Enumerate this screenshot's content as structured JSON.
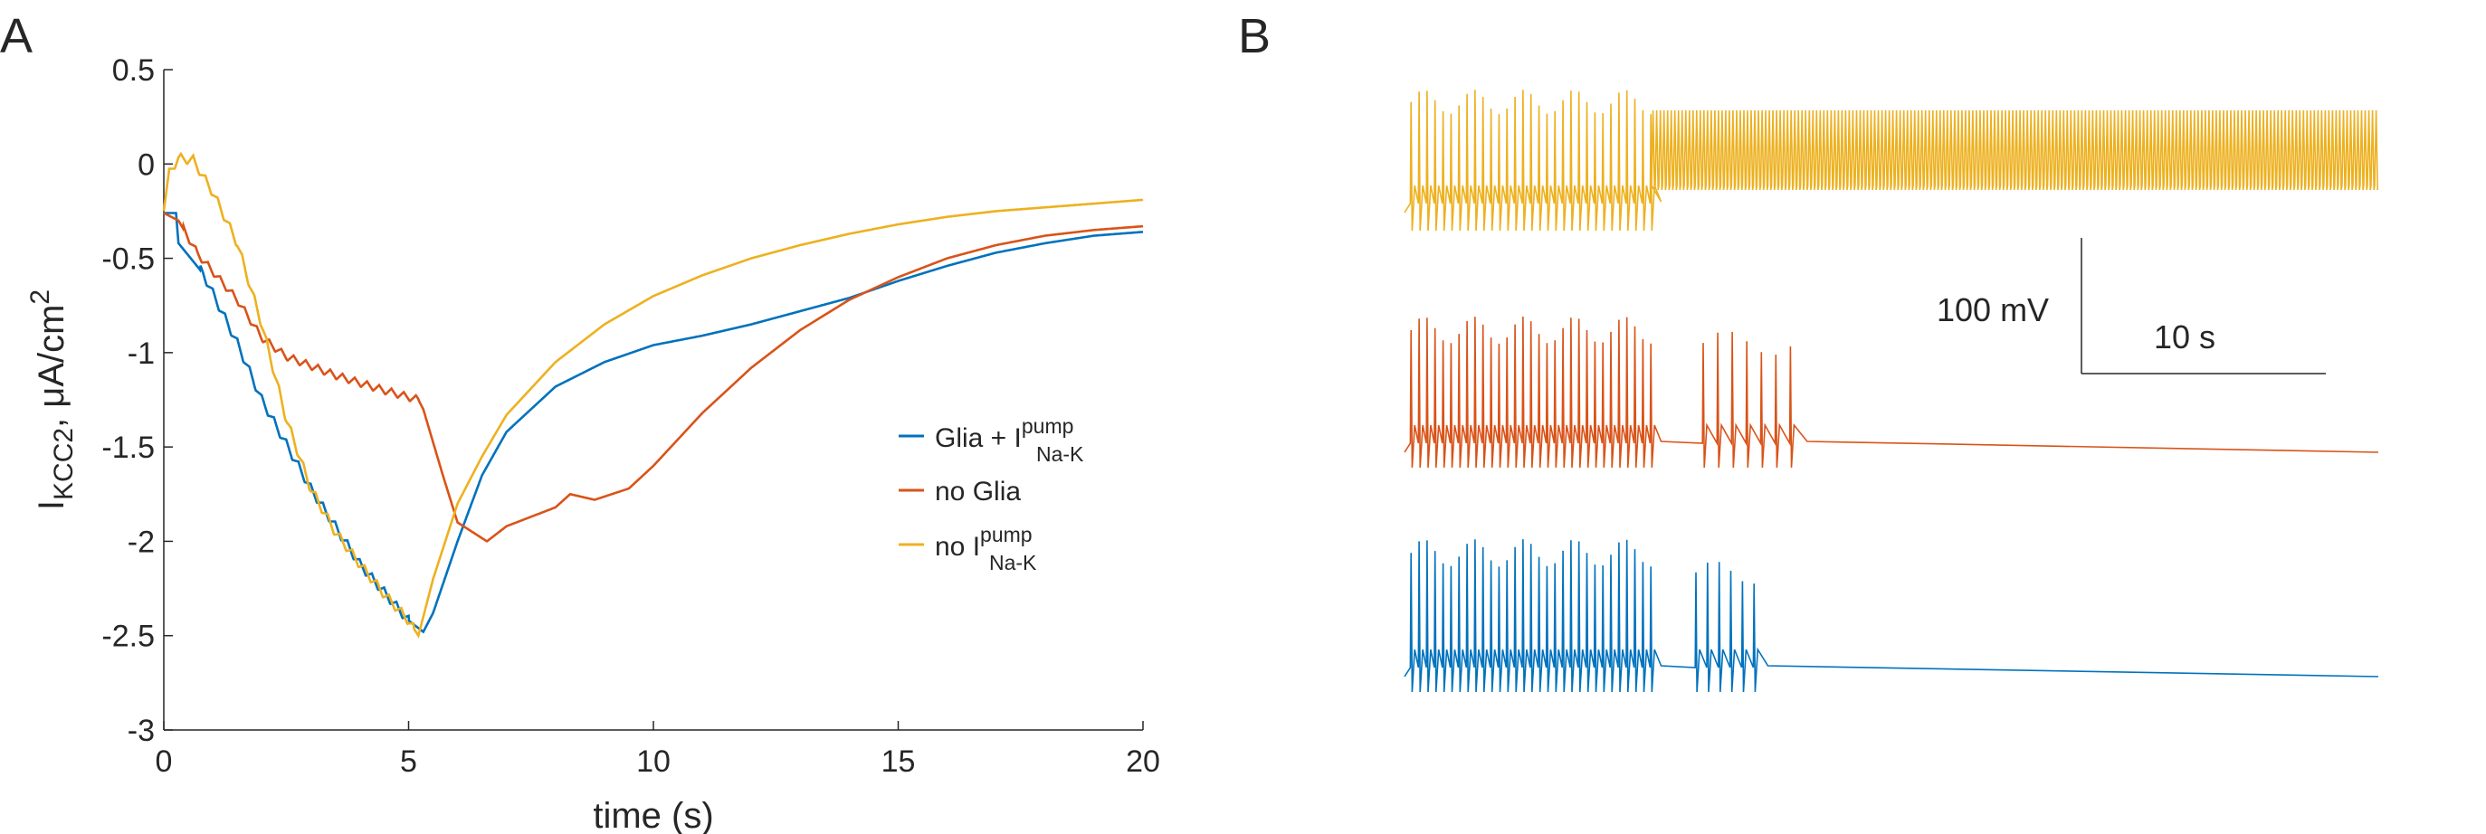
{
  "panel_a": {
    "letter": "A"
  },
  "panel_b": {
    "letter": "B",
    "scale_v_label": "100 mV",
    "scale_t_label": "10 s"
  },
  "colors": {
    "blue": "#0072BD",
    "red": "#D95319",
    "yellow": "#EDB120",
    "axis": "#262626"
  },
  "chart_data": [
    {
      "type": "line",
      "xlabel": "time (s)",
      "ylabel": {
        "base": "I",
        "sub": "KCC2",
        "rest": ", μA/cm",
        "sup": "2"
      },
      "xlim": [
        0,
        20
      ],
      "ylim": [
        -3,
        0.5
      ],
      "xticks": [
        0,
        5,
        10,
        15,
        20
      ],
      "yticks": [
        0.5,
        0,
        -0.5,
        -1,
        -1.5,
        -2,
        -2.5,
        -3
      ],
      "grid": false,
      "legend_position": "right",
      "series": [
        {
          "name": {
            "main": "Glia + I",
            "sup": "pump",
            "sub": "Na-K"
          },
          "color": "blue",
          "osc": {
            "from": 0.75,
            "to": 5.0,
            "period": 0.25,
            "amp": 0.05
          },
          "points": [
            [
              0,
              -0.26
            ],
            [
              0.25,
              -0.26
            ],
            [
              0.3,
              -0.42
            ],
            [
              0.8,
              -0.58
            ],
            [
              1.5,
              -0.95
            ],
            [
              2.0,
              -1.25
            ],
            [
              3.0,
              -1.72
            ],
            [
              4.0,
              -2.12
            ],
            [
              5.0,
              -2.42
            ],
            [
              5.3,
              -2.48
            ],
            [
              5.5,
              -2.38
            ],
            [
              6.0,
              -2.0
            ],
            [
              6.5,
              -1.65
            ],
            [
              7.0,
              -1.42
            ],
            [
              7.5,
              -1.3
            ],
            [
              8.0,
              -1.18
            ],
            [
              9.0,
              -1.05
            ],
            [
              10.0,
              -0.96
            ],
            [
              11.0,
              -0.91
            ],
            [
              12.0,
              -0.85
            ],
            [
              13.0,
              -0.78
            ],
            [
              14.0,
              -0.71
            ],
            [
              15.0,
              -0.62
            ],
            [
              16.0,
              -0.54
            ],
            [
              17.0,
              -0.47
            ],
            [
              18.0,
              -0.42
            ],
            [
              19.0,
              -0.38
            ],
            [
              20.0,
              -0.36
            ]
          ]
        },
        {
          "name": {
            "main": "no Glia"
          },
          "color": "red",
          "osc": {
            "from": 0.4,
            "to": 5.2,
            "period": 0.25,
            "amp": 0.04
          },
          "points": [
            [
              0,
              -0.26
            ],
            [
              0.3,
              -0.3
            ],
            [
              0.7,
              -0.48
            ],
            [
              1.5,
              -0.72
            ],
            [
              2.0,
              -0.92
            ],
            [
              2.5,
              -1.02
            ],
            [
              3.5,
              -1.12
            ],
            [
              4.5,
              -1.2
            ],
            [
              5.2,
              -1.25
            ],
            [
              5.3,
              -1.3
            ],
            [
              5.7,
              -1.65
            ],
            [
              6.0,
              -1.9
            ],
            [
              6.3,
              -1.95
            ],
            [
              6.6,
              -2.0
            ],
            [
              7.0,
              -1.92
            ],
            [
              8.0,
              -1.82
            ],
            [
              8.3,
              -1.75
            ],
            [
              8.8,
              -1.78
            ],
            [
              9.5,
              -1.72
            ],
            [
              10.0,
              -1.6
            ],
            [
              11.0,
              -1.32
            ],
            [
              12.0,
              -1.08
            ],
            [
              13.0,
              -0.88
            ],
            [
              14.0,
              -0.72
            ],
            [
              15.0,
              -0.6
            ],
            [
              16.0,
              -0.5
            ],
            [
              17.0,
              -0.43
            ],
            [
              18.0,
              -0.38
            ],
            [
              19.0,
              -0.35
            ],
            [
              20.0,
              -0.33
            ]
          ]
        },
        {
          "name": {
            "main": "no I",
            "sup": "pump",
            "sub": "Na-K"
          },
          "color": "yellow",
          "osc": {
            "from": 0.1,
            "to": 5.1,
            "period": 0.25,
            "amp": 0.05
          },
          "points": [
            [
              0,
              -0.25
            ],
            [
              0.1,
              -0.05
            ],
            [
              0.3,
              0.03
            ],
            [
              0.6,
              0.02
            ],
            [
              1.0,
              -0.15
            ],
            [
              1.5,
              -0.42
            ],
            [
              2.0,
              -0.85
            ],
            [
              2.5,
              -1.35
            ],
            [
              3.0,
              -1.72
            ],
            [
              3.5,
              -1.95
            ],
            [
              4.0,
              -2.12
            ],
            [
              4.5,
              -2.28
            ],
            [
              5.0,
              -2.42
            ],
            [
              5.2,
              -2.5
            ],
            [
              5.5,
              -2.2
            ],
            [
              6.0,
              -1.8
            ],
            [
              6.5,
              -1.55
            ],
            [
              7.0,
              -1.33
            ],
            [
              8.0,
              -1.05
            ],
            [
              9.0,
              -0.85
            ],
            [
              10.0,
              -0.7
            ],
            [
              11.0,
              -0.59
            ],
            [
              12.0,
              -0.5
            ],
            [
              13.0,
              -0.43
            ],
            [
              14.0,
              -0.37
            ],
            [
              15.0,
              -0.32
            ],
            [
              16.0,
              -0.28
            ],
            [
              17.0,
              -0.25
            ],
            [
              18.0,
              -0.23
            ],
            [
              19.0,
              -0.21
            ],
            [
              20.0,
              -0.19
            ]
          ]
        }
      ]
    },
    {
      "type": "line",
      "xlabel": "",
      "ylabel": "",
      "axes_visible": false,
      "scale_bar": {
        "voltage": "100 mV",
        "time": "10 s"
      },
      "traces": [
        {
          "series": "no I_Na-K pump",
          "color": "yellow",
          "spikes": [
            {
              "count": 31,
              "spacing": 0.55,
              "start": 0.4,
              "height": 0.95
            }
          ],
          "tonic": {
            "start": 17.0,
            "end": 67.0,
            "count": 200
          },
          "notes": "bursting then sustained high-frequency firing"
        },
        {
          "series": "no Glia",
          "color": "red",
          "spikes": [
            {
              "count": 31,
              "spacing": 0.55,
              "start": 0.4,
              "height": 0.95
            },
            {
              "count": 7,
              "spacing": 1.0,
              "start": 20.5,
              "height": 0.85
            }
          ],
          "notes": "burst, pause, late spikes, then silence"
        },
        {
          "series": "Glia + I_Na-K pump",
          "color": "blue",
          "spikes": [
            {
              "count": 31,
              "spacing": 0.55,
              "start": 0.4,
              "height": 0.95
            },
            {
              "count": 6,
              "spacing": 0.8,
              "start": 20.0,
              "height": 0.8
            }
          ],
          "notes": "burst, pause, late spikes, then silence"
        }
      ]
    }
  ]
}
